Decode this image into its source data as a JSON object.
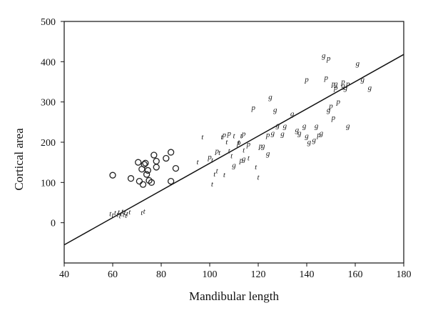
{
  "chart_data": {
    "type": "scatter",
    "title": "",
    "xlabel": "Mandibular length",
    "ylabel": "Cortical area",
    "xlim": [
      40,
      180
    ],
    "ylim": [
      -100,
      500
    ],
    "xticks": [
      "40",
      "60",
      "80",
      "100",
      "120",
      "140",
      "160",
      "180"
    ],
    "yticks": [
      "0",
      "100",
      "200",
      "300",
      "400",
      "500"
    ],
    "grid": false,
    "legend": "none",
    "colors": {
      "axis": "#111111",
      "marker": "#222222"
    },
    "series": [
      {
        "marker": "circle",
        "points": [
          [
            60,
            118
          ],
          [
            67.5,
            110
          ],
          [
            70.5,
            150
          ],
          [
            71,
            103
          ],
          [
            72,
            133
          ],
          [
            73,
            145
          ],
          [
            72.5,
            95
          ],
          [
            74,
            120
          ],
          [
            74.5,
            130
          ],
          [
            75,
            105
          ],
          [
            76,
            100
          ],
          [
            77,
            168
          ],
          [
            78,
            153
          ],
          [
            78,
            138
          ],
          [
            82,
            160
          ],
          [
            84,
            175
          ],
          [
            86,
            135
          ],
          [
            84,
            103
          ],
          [
            73.5,
            148
          ]
        ]
      },
      {
        "marker": "t",
        "points": [
          [
            59,
            22
          ],
          [
            60,
            18
          ],
          [
            61,
            24
          ],
          [
            62,
            20
          ],
          [
            63,
            16
          ],
          [
            63.5,
            22
          ],
          [
            64,
            28
          ],
          [
            64.5,
            20
          ],
          [
            65,
            24
          ],
          [
            66,
            22
          ],
          [
            67,
            26
          ],
          [
            72,
            24
          ],
          [
            73,
            28
          ],
          [
            62.5,
            26
          ],
          [
            65.5,
            17
          ],
          [
            97,
            212
          ],
          [
            95,
            150
          ],
          [
            101,
            95
          ],
          [
            102,
            120
          ],
          [
            103,
            128
          ],
          [
            106,
            118
          ],
          [
            105,
            212
          ],
          [
            104,
            173
          ],
          [
            107,
            200
          ],
          [
            108,
            178
          ],
          [
            109,
            165
          ],
          [
            110,
            215
          ],
          [
            112,
            200
          ],
          [
            113,
            215
          ],
          [
            114,
            180
          ],
          [
            116,
            160
          ],
          [
            119,
            138
          ],
          [
            120,
            112
          ],
          [
            101,
            155
          ]
        ]
      },
      {
        "marker": "p",
        "points": [
          [
            106,
            218
          ],
          [
            108,
            221
          ],
          [
            112,
            198
          ],
          [
            114,
            220
          ],
          [
            116,
            195
          ],
          [
            118,
            285
          ],
          [
            121,
            190
          ],
          [
            124,
            218
          ],
          [
            140,
            355
          ],
          [
            145,
            218
          ],
          [
            148,
            360
          ],
          [
            149,
            408
          ],
          [
            151,
            345
          ],
          [
            151,
            260
          ],
          [
            153,
            300
          ],
          [
            150,
            290
          ],
          [
            152,
            335
          ],
          [
            155,
            350
          ],
          [
            157,
            345
          ],
          [
            113,
            155
          ],
          [
            103,
            178
          ],
          [
            100,
            163
          ]
        ]
      },
      {
        "marker": "g",
        "points": [
          [
            110,
            142
          ],
          [
            114,
            158
          ],
          [
            122,
            190
          ],
          [
            124,
            172
          ],
          [
            125,
            312
          ],
          [
            126,
            222
          ],
          [
            127,
            280
          ],
          [
            128,
            242
          ],
          [
            130,
            220
          ],
          [
            131,
            240
          ],
          [
            134,
            270
          ],
          [
            136,
            230
          ],
          [
            139,
            240
          ],
          [
            140,
            215
          ],
          [
            141,
            200
          ],
          [
            143,
            205
          ],
          [
            144,
            240
          ],
          [
            146,
            222
          ],
          [
            147,
            415
          ],
          [
            149,
            280
          ],
          [
            152,
            345
          ],
          [
            156,
            335
          ],
          [
            157,
            240
          ],
          [
            161,
            395
          ],
          [
            163,
            355
          ],
          [
            166,
            335
          ],
          [
            155,
            340
          ],
          [
            137,
            222
          ]
        ]
      }
    ],
    "regression_line": {
      "x": [
        40,
        180
      ],
      "y": [
        -55,
        418
      ]
    }
  }
}
